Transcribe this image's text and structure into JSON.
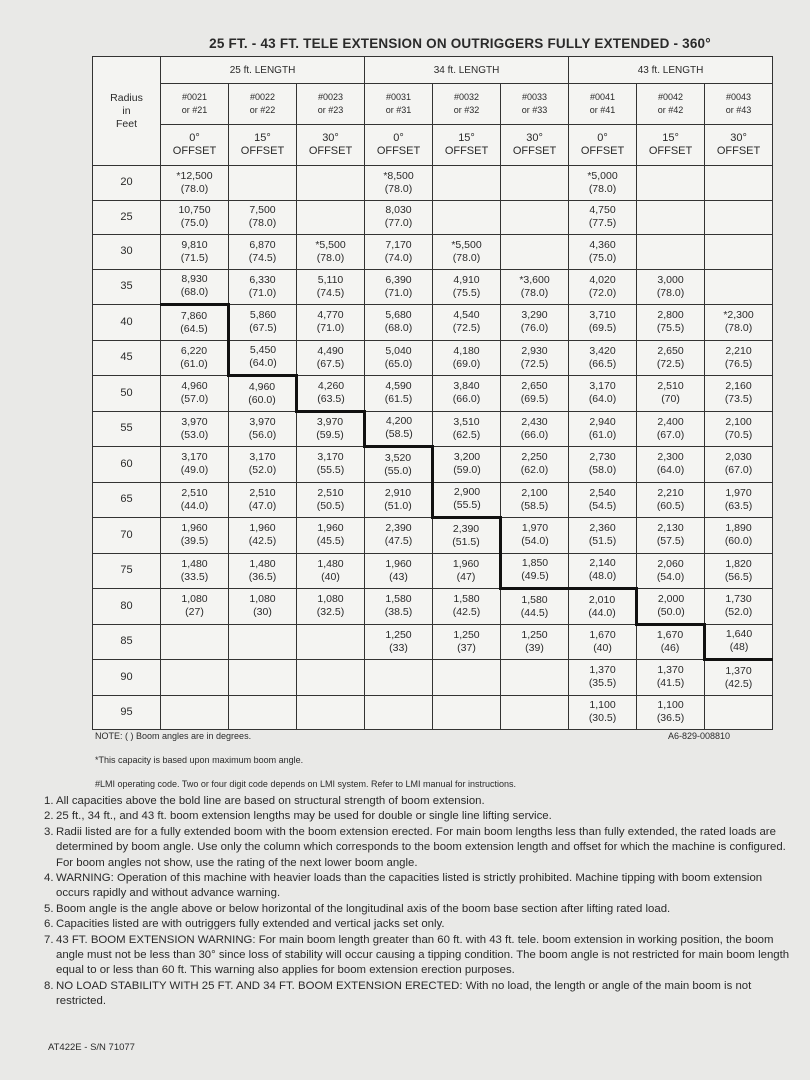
{
  "header": {
    "title": "25 FT. - 43 FT. TELE EXTENSION ON OUTRIGGERS FULLY EXTENDED - 360°"
  },
  "table": {
    "radius_header": [
      "Radius",
      "in",
      "Feet"
    ],
    "groups": [
      "25 ft. LENGTH",
      "34 ft. LENGTH",
      "43 ft. LENGTH"
    ],
    "columns": [
      {
        "code": "#0021",
        "alt": "or #21",
        "angle": "0°",
        "offset": "OFFSET"
      },
      {
        "code": "#0022",
        "alt": "or #22",
        "angle": "15°",
        "offset": "OFFSET"
      },
      {
        "code": "#0023",
        "alt": "or #23",
        "angle": "30°",
        "offset": "OFFSET"
      },
      {
        "code": "#0031",
        "alt": "or #31",
        "angle": "0°",
        "offset": "OFFSET"
      },
      {
        "code": "#0032",
        "alt": "or #32",
        "angle": "15°",
        "offset": "OFFSET"
      },
      {
        "code": "#0033",
        "alt": "or #33",
        "angle": "30°",
        "offset": "OFFSET"
      },
      {
        "code": "#0041",
        "alt": "or #41",
        "angle": "0°",
        "offset": "OFFSET"
      },
      {
        "code": "#0042",
        "alt": "or #42",
        "angle": "15°",
        "offset": "OFFSET"
      },
      {
        "code": "#0043",
        "alt": "or #43",
        "angle": "30°",
        "offset": "OFFSET"
      }
    ],
    "rows": [
      {
        "radius": 20,
        "cells": [
          [
            "*12,500",
            "(78.0)"
          ],
          null,
          null,
          [
            "*8,500",
            "(78.0)"
          ],
          null,
          null,
          [
            "*5,000",
            "(78.0)"
          ],
          null,
          null
        ]
      },
      {
        "radius": 25,
        "cells": [
          [
            "10,750",
            "(75.0)"
          ],
          [
            "7,500",
            "(78.0)"
          ],
          null,
          [
            "8,030",
            "(77.0)"
          ],
          null,
          null,
          [
            "4,750",
            "(77.5)"
          ],
          null,
          null
        ]
      },
      {
        "radius": 30,
        "cells": [
          [
            "9,810",
            "(71.5)"
          ],
          [
            "6,870",
            "(74.5)"
          ],
          [
            "*5,500",
            "(78.0)"
          ],
          [
            "7,170",
            "(74.0)"
          ],
          [
            "*5,500",
            "(78.0)"
          ],
          null,
          [
            "4,360",
            "(75.0)"
          ],
          null,
          null
        ]
      },
      {
        "radius": 35,
        "cells": [
          [
            "8,930",
            "(68.0)"
          ],
          [
            "6,330",
            "(71.0)"
          ],
          [
            "5,110",
            "(74.5)"
          ],
          [
            "6,390",
            "(71.0)"
          ],
          [
            "4,910",
            "(75.5)"
          ],
          [
            "*3,600",
            "(78.0)"
          ],
          [
            "4,020",
            "(72.0)"
          ],
          [
            "3,000",
            "(78.0)"
          ],
          null
        ]
      },
      {
        "radius": 40,
        "cells": [
          [
            "7,860",
            "(64.5)"
          ],
          [
            "5,860",
            "(67.5)"
          ],
          [
            "4,770",
            "(71.0)"
          ],
          [
            "5,680",
            "(68.0)"
          ],
          [
            "4,540",
            "(72.5)"
          ],
          [
            "3,290",
            "(76.0)"
          ],
          [
            "3,710",
            "(69.5)"
          ],
          [
            "2,800",
            "(75.5)"
          ],
          [
            "*2,300",
            "(78.0)"
          ]
        ]
      },
      {
        "radius": 45,
        "cells": [
          [
            "6,220",
            "(61.0)"
          ],
          [
            "5,450",
            "(64.0)"
          ],
          [
            "4,490",
            "(67.5)"
          ],
          [
            "5,040",
            "(65.0)"
          ],
          [
            "4,180",
            "(69.0)"
          ],
          [
            "2,930",
            "(72.5)"
          ],
          [
            "3,420",
            "(66.5)"
          ],
          [
            "2,650",
            "(72.5)"
          ],
          [
            "2,210",
            "(76.5)"
          ]
        ]
      },
      {
        "radius": 50,
        "cells": [
          [
            "4,960",
            "(57.0)"
          ],
          [
            "4,960",
            "(60.0)"
          ],
          [
            "4,260",
            "(63.5)"
          ],
          [
            "4,590",
            "(61.5)"
          ],
          [
            "3,840",
            "(66.0)"
          ],
          [
            "2,650",
            "(69.5)"
          ],
          [
            "3,170",
            "(64.0)"
          ],
          [
            "2,510",
            "(70)"
          ],
          [
            "2,160",
            "(73.5)"
          ]
        ]
      },
      {
        "radius": 55,
        "cells": [
          [
            "3,970",
            "(53.0)"
          ],
          [
            "3,970",
            "(56.0)"
          ],
          [
            "3,970",
            "(59.5)"
          ],
          [
            "4,200",
            "(58.5)"
          ],
          [
            "3,510",
            "(62.5)"
          ],
          [
            "2,430",
            "(66.0)"
          ],
          [
            "2,940",
            "(61.0)"
          ],
          [
            "2,400",
            "(67.0)"
          ],
          [
            "2,100",
            "(70.5)"
          ]
        ]
      },
      {
        "radius": 60,
        "cells": [
          [
            "3,170",
            "(49.0)"
          ],
          [
            "3,170",
            "(52.0)"
          ],
          [
            "3,170",
            "(55.5)"
          ],
          [
            "3,520",
            "(55.0)"
          ],
          [
            "3,200",
            "(59.0)"
          ],
          [
            "2,250",
            "(62.0)"
          ],
          [
            "2,730",
            "(58.0)"
          ],
          [
            "2,300",
            "(64.0)"
          ],
          [
            "2,030",
            "(67.0)"
          ]
        ]
      },
      {
        "radius": 65,
        "cells": [
          [
            "2,510",
            "(44.0)"
          ],
          [
            "2,510",
            "(47.0)"
          ],
          [
            "2,510",
            "(50.5)"
          ],
          [
            "2,910",
            "(51.0)"
          ],
          [
            "2,900",
            "(55.5)"
          ],
          [
            "2,100",
            "(58.5)"
          ],
          [
            "2,540",
            "(54.5)"
          ],
          [
            "2,210",
            "(60.5)"
          ],
          [
            "1,970",
            "(63.5)"
          ]
        ]
      },
      {
        "radius": 70,
        "cells": [
          [
            "1,960",
            "(39.5)"
          ],
          [
            "1,960",
            "(42.5)"
          ],
          [
            "1,960",
            "(45.5)"
          ],
          [
            "2,390",
            "(47.5)"
          ],
          [
            "2,390",
            "(51.5)"
          ],
          [
            "1,970",
            "(54.0)"
          ],
          [
            "2,360",
            "(51.5)"
          ],
          [
            "2,130",
            "(57.5)"
          ],
          [
            "1,890",
            "(60.0)"
          ]
        ]
      },
      {
        "radius": 75,
        "cells": [
          [
            "1,480",
            "(33.5)"
          ],
          [
            "1,480",
            "(36.5)"
          ],
          [
            "1,480",
            "(40)"
          ],
          [
            "1,960",
            "(43)"
          ],
          [
            "1,960",
            "(47)"
          ],
          [
            "1,850",
            "(49.5)"
          ],
          [
            "2,140",
            "(48.0)"
          ],
          [
            "2,060",
            "(54.0)"
          ],
          [
            "1,820",
            "(56.5)"
          ]
        ]
      },
      {
        "radius": 80,
        "cells": [
          [
            "1,080",
            "(27)"
          ],
          [
            "1,080",
            "(30)"
          ],
          [
            "1,080",
            "(32.5)"
          ],
          [
            "1,580",
            "(38.5)"
          ],
          [
            "1,580",
            "(42.5)"
          ],
          [
            "1,580",
            "(44.5)"
          ],
          [
            "2,010",
            "(44.0)"
          ],
          [
            "2,000",
            "(50.0)"
          ],
          [
            "1,730",
            "(52.0)"
          ]
        ]
      },
      {
        "radius": 85,
        "cells": [
          null,
          null,
          null,
          [
            "1,250",
            "(33)"
          ],
          [
            "1,250",
            "(37)"
          ],
          [
            "1,250",
            "(39)"
          ],
          [
            "1,670",
            "(40)"
          ],
          [
            "1,670",
            "(46)"
          ],
          [
            "1,640",
            "(48)"
          ]
        ]
      },
      {
        "radius": 90,
        "cells": [
          null,
          null,
          null,
          null,
          null,
          null,
          [
            "1,370",
            "(35.5)"
          ],
          [
            "1,370",
            "(41.5)"
          ],
          [
            "1,370",
            "(42.5)"
          ]
        ]
      },
      {
        "radius": 95,
        "cells": [
          null,
          null,
          null,
          null,
          null,
          null,
          [
            "1,100",
            "(30.5)"
          ],
          [
            "1,100",
            "(36.5)"
          ],
          null
        ]
      }
    ]
  },
  "notes": {
    "note": "NOTE: ( ) Boom angles are in degrees.",
    "chart_id": "A6-829-008810",
    "asterisk": "*This capacity is based upon maximum boom angle.",
    "lmi": "#LMI operating code. Two or four digit code depends on LMI system. Refer to LMI manual for instructions."
  },
  "items": [
    {
      "number": "1.",
      "text": "All capacities above the bold line are based on structural strength of boom extension."
    },
    {
      "number": "2.",
      "text": "25 ft., 34 ft., and 43 ft. boom extension lengths may be used for double or single line lifting service."
    },
    {
      "number": "3.",
      "text": "Radii listed are for a fully extended boom with the boom extension erected. For main boom lengths less than fully extended, the rated loads are determined by boom angle. Use only the column which corresponds to the boom extension length and offset for which the machine is configured. For boom angles not show, use the rating of the next lower boom angle."
    },
    {
      "number": "4.",
      "text": "WARNING: Operation of this machine with heavier loads than the capacities listed is strictly prohibited. Machine tipping with boom extension occurs rapidly and without advance warning."
    },
    {
      "number": "5.",
      "text": "Boom angle is the angle above or below horizontal of the longitudinal axis of the boom base section after lifting rated load."
    },
    {
      "number": "6.",
      "text": "Capacities listed are with outriggers fully extended and vertical jacks set only."
    },
    {
      "number": "7.",
      "text": "43 FT. BOOM EXTENSION WARNING: For main boom length greater than 60 ft. with 43 ft. tele. boom extension in working position, the boom angle must not be less than 30° since loss of stability will occur causing a tipping condition. The boom angle is not restricted for main boom length equal to or less than 60 ft. This warning also applies for boom extension erection purposes."
    },
    {
      "number": "8.",
      "text": "NO LOAD STABILITY WITH 25 FT. AND 34 FT. BOOM EXTENSION ERECTED: With no load, the length or angle of the main boom is not restricted."
    }
  ],
  "footer": {
    "model": "AT422E - S/N 71077"
  }
}
